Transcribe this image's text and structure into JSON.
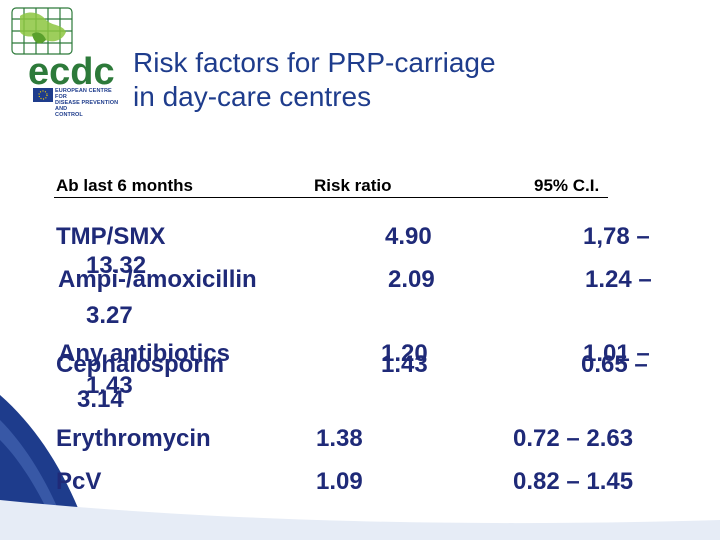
{
  "logo": {
    "brand": "ecdc",
    "subtitle_lines": [
      "EUROPEAN CENTRE FOR",
      "DISEASE PREVENTION AND",
      "CONTROL"
    ]
  },
  "title": {
    "line1": "Risk factors for PRP-carriage",
    "line2": "in day-care centres"
  },
  "table": {
    "headers": {
      "ab": "Ab last 6 months",
      "rr": "Risk ratio",
      "ci": "95% C.I."
    },
    "rows": {
      "tmp": {
        "name": "TMP/SMX",
        "rr": "4.90",
        "ci": "1,78 –",
        "ci_cont": "13.32"
      },
      "ampi": {
        "name": "Ampi-/amoxicillin",
        "rr": "2.09",
        "ci": "1.24 –",
        "ci_cont": "3.27"
      },
      "any": {
        "name": "Any antibiotics",
        "rr": "1.20",
        "ci": "1.01 –",
        "ci_cont": "1.43"
      },
      "ceph": {
        "name": "Cephalosporin",
        "rr": "1.43",
        "ci": "0.65 –",
        "ci_cont": "3.14"
      },
      "ery": {
        "name": "Erythromycin",
        "rr": "1.38",
        "ci": "0.72 – 2.63"
      },
      "pcv": {
        "name": "PcV",
        "rr": "1.09",
        "ci": "0.82 – 1.45"
      }
    }
  },
  "colors": {
    "text": "#1f2a78",
    "title": "#1e3c8c",
    "background_wave": "#1e3c8c"
  }
}
